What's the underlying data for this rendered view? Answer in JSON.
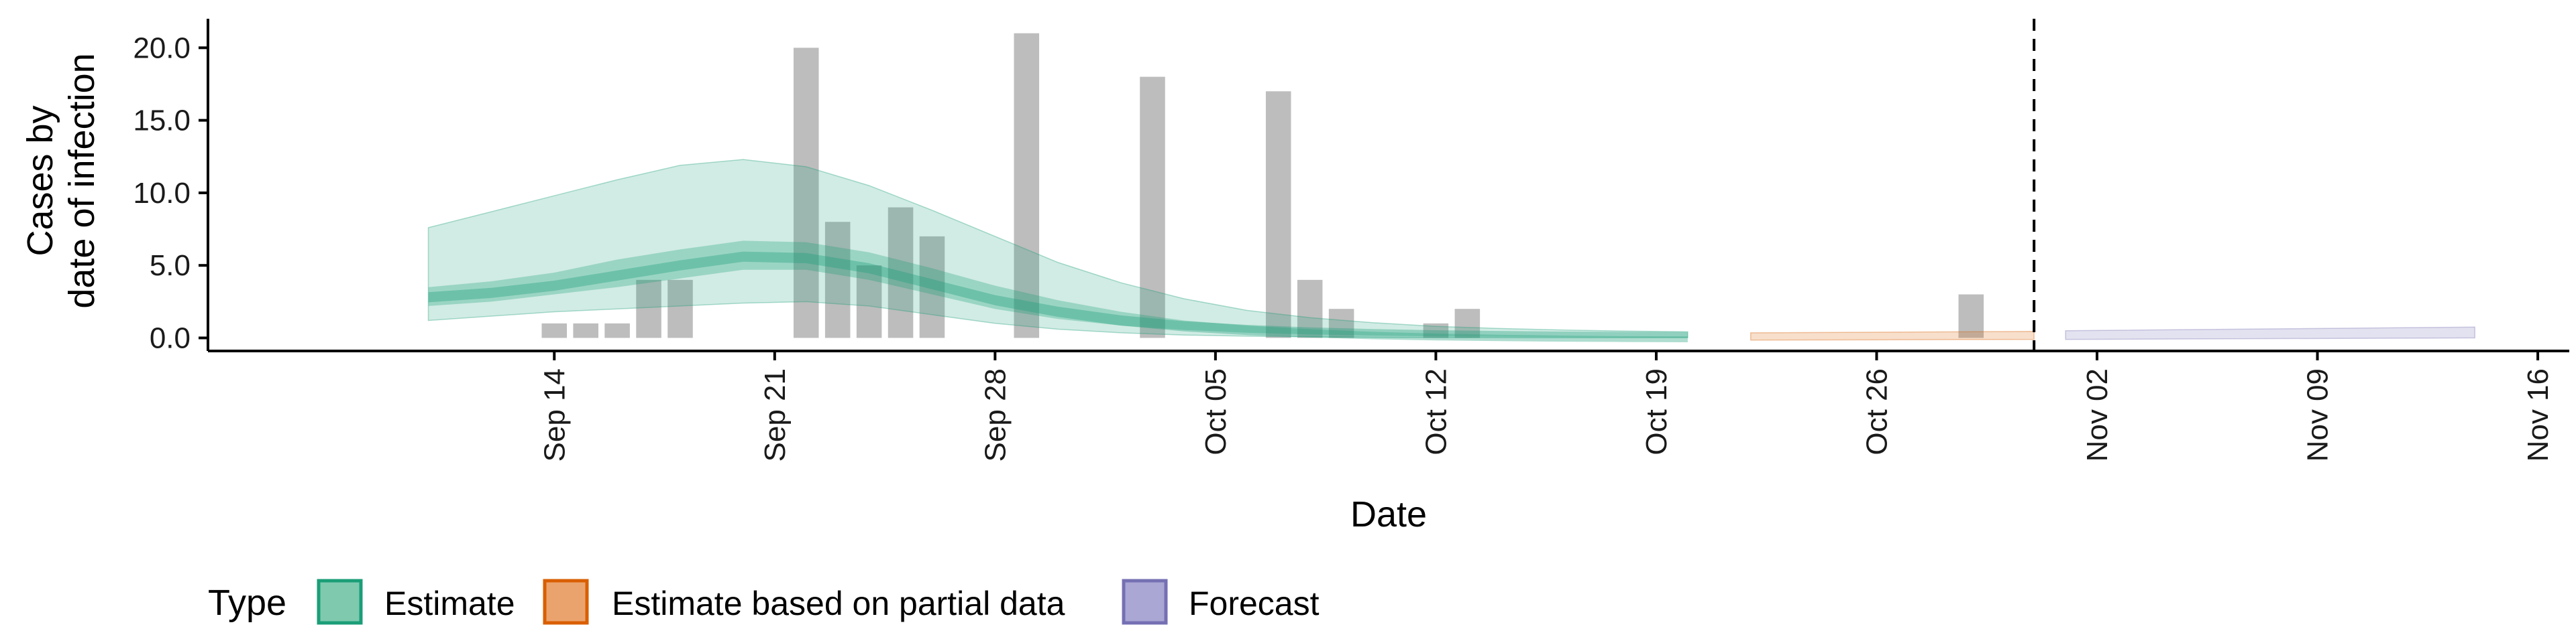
{
  "chart_data": {
    "type": "area",
    "xlabel": "Date",
    "ylabel_lines": [
      "Cases by",
      "date of infection"
    ],
    "x_range": [
      "2020-09-03",
      "2020-11-17"
    ],
    "ylim": [
      -0.9,
      22.0
    ],
    "y_ticks": [
      0,
      5,
      10,
      15,
      20
    ],
    "y_tick_labels": [
      "0.0",
      "5.0",
      "10.0",
      "15.0",
      "20.0"
    ],
    "x_ticks": [
      "2020-09-14",
      "2020-09-21",
      "2020-09-28",
      "2020-10-05",
      "2020-10-12",
      "2020-10-19",
      "2020-10-26",
      "2020-11-02",
      "2020-11-09",
      "2020-11-16"
    ],
    "x_tick_labels": [
      "Sep 14",
      "Sep 21",
      "Sep 28",
      "Oct 05",
      "Oct 12",
      "Oct 19",
      "Oct 26",
      "Nov 02",
      "Nov 09",
      "Nov 16"
    ],
    "grid": false,
    "legend_position": "bottom-left",
    "forecast_start_line": "2020-10-31",
    "colors": {
      "estimate": "#1b9e77",
      "partial": "#d95f02",
      "forecast": "#7570b3",
      "bars": "#bdbdbd",
      "axis": "#000000"
    },
    "reported_cases": [
      {
        "date": "2020-09-14",
        "value": 1
      },
      {
        "date": "2020-09-15",
        "value": 1
      },
      {
        "date": "2020-09-16",
        "value": 1
      },
      {
        "date": "2020-09-17",
        "value": 4
      },
      {
        "date": "2020-09-18",
        "value": 4
      },
      {
        "date": "2020-09-22",
        "value": 20
      },
      {
        "date": "2020-09-23",
        "value": 8
      },
      {
        "date": "2020-09-24",
        "value": 5
      },
      {
        "date": "2020-09-25",
        "value": 9
      },
      {
        "date": "2020-09-26",
        "value": 7
      },
      {
        "date": "2020-09-29",
        "value": 21
      },
      {
        "date": "2020-10-03",
        "value": 18
      },
      {
        "date": "2020-10-07",
        "value": 17
      },
      {
        "date": "2020-10-08",
        "value": 4
      },
      {
        "date": "2020-10-09",
        "value": 2
      },
      {
        "date": "2020-10-12",
        "value": 1
      },
      {
        "date": "2020-10-13",
        "value": 2
      },
      {
        "date": "2020-10-29",
        "value": 3
      }
    ],
    "series": [
      {
        "name": "Estimate",
        "x": [
          "2020-09-10",
          "2020-09-12",
          "2020-09-14",
          "2020-09-16",
          "2020-09-18",
          "2020-09-20",
          "2020-09-22",
          "2020-09-24",
          "2020-09-26",
          "2020-09-28",
          "2020-09-30",
          "2020-10-02",
          "2020-10-04",
          "2020-10-06",
          "2020-10-08",
          "2020-10-10",
          "2020-10-12",
          "2020-10-14",
          "2020-10-16",
          "2020-10-18",
          "2020-10-20"
        ],
        "median": [
          2.8,
          3.1,
          3.6,
          4.3,
          5.0,
          5.6,
          5.5,
          4.8,
          3.7,
          2.6,
          1.8,
          1.2,
          0.8,
          0.55,
          0.38,
          0.26,
          0.18,
          0.13,
          0.09,
          0.07,
          0.05
        ],
        "lower_50": [
          2.2,
          2.5,
          3.0,
          3.5,
          4.1,
          4.7,
          4.7,
          4.0,
          3.0,
          2.0,
          1.3,
          0.85,
          0.55,
          0.36,
          0.24,
          0.16,
          0.11,
          0.08,
          0.06,
          0.04,
          0.03
        ],
        "upper_50": [
          3.5,
          3.9,
          4.5,
          5.4,
          6.1,
          6.7,
          6.6,
          5.9,
          4.8,
          3.6,
          2.6,
          1.8,
          1.2,
          0.85,
          0.6,
          0.42,
          0.3,
          0.22,
          0.16,
          0.12,
          0.1
        ],
        "lower_90": [
          1.2,
          1.5,
          1.8,
          2.0,
          2.2,
          2.4,
          2.5,
          2.2,
          1.6,
          1.0,
          0.6,
          0.35,
          0.2,
          0.12,
          0.07,
          0.04,
          0.03,
          0.02,
          0.01,
          0.01,
          0.01
        ],
        "upper_90": [
          7.6,
          8.7,
          9.8,
          10.9,
          11.9,
          12.3,
          11.8,
          10.5,
          8.8,
          7.0,
          5.2,
          3.8,
          2.7,
          1.9,
          1.4,
          1.05,
          0.8,
          0.65,
          0.55,
          0.47,
          0.42
        ]
      },
      {
        "name": "Estimate based on partial data",
        "x": [
          "2020-10-22",
          "2020-10-31"
        ],
        "median": [
          0.05,
          0.1
        ],
        "lower_90": [
          -0.15,
          -0.1
        ],
        "upper_90": [
          0.35,
          0.45
        ]
      },
      {
        "name": "Forecast",
        "x": [
          "2020-11-01",
          "2020-11-14"
        ],
        "median": [
          0.1,
          0.2
        ],
        "lower_90": [
          -0.1,
          0.0
        ],
        "upper_90": [
          0.5,
          0.75
        ]
      }
    ]
  },
  "legend": {
    "title": "Type",
    "items": [
      {
        "label": "Estimate",
        "fill": "#7fc9af",
        "stroke": "#1b9e77"
      },
      {
        "label": "Estimate based on partial data",
        "fill": "#eba36e",
        "stroke": "#d95f02"
      },
      {
        "label": "Forecast",
        "fill": "#aaa7d4",
        "stroke": "#7570b3"
      }
    ]
  }
}
